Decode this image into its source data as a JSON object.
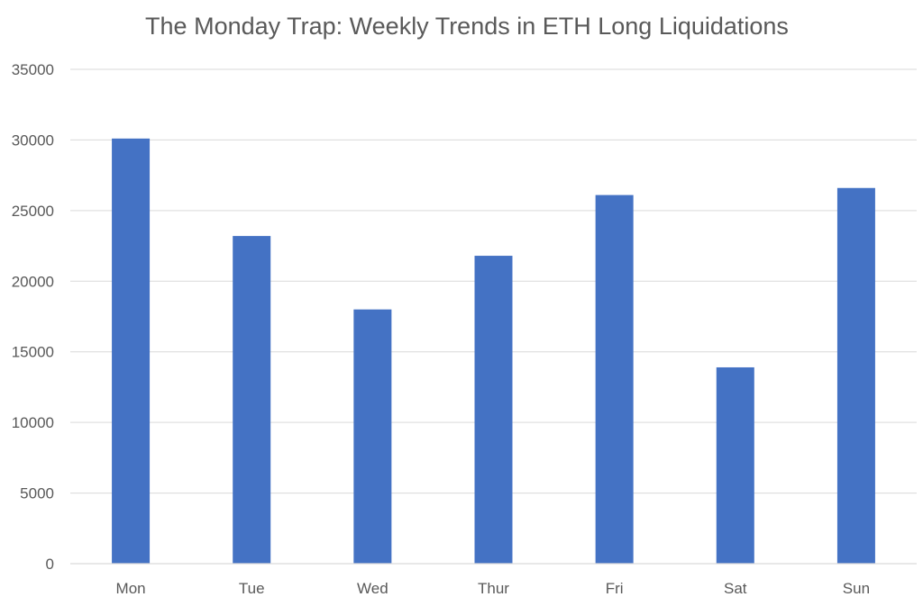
{
  "chart_data": {
    "type": "bar",
    "title": "The Monday Trap: Weekly Trends in ETH Long Liquidations",
    "xlabel": "",
    "ylabel": "",
    "categories": [
      "Mon",
      "Tue",
      "Wed",
      "Thur",
      "Fri",
      "Sat",
      "Sun"
    ],
    "series": [
      {
        "values": [
          30100,
          23200,
          18000,
          21800,
          26100,
          13900,
          26600
        ]
      }
    ],
    "ylim": [
      0,
      35000
    ],
    "yticks": [
      0,
      5000,
      10000,
      15000,
      20000,
      25000,
      30000,
      35000
    ],
    "grid": true,
    "legend": "none",
    "bar_color": "#4472c4"
  }
}
